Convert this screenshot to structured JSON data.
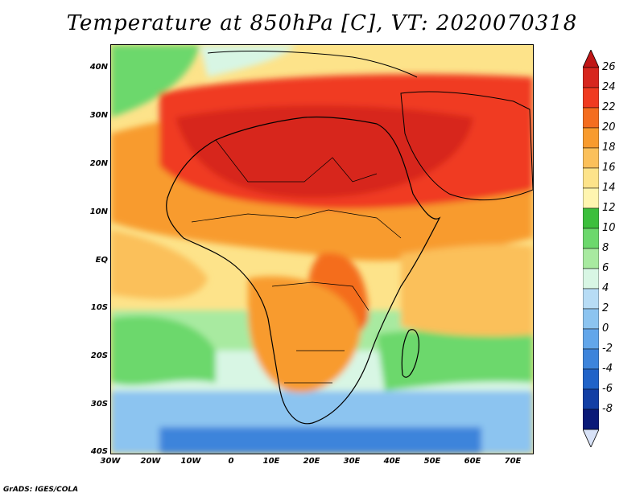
{
  "title": "Temperature at 850hPa [C], VT: 2020070318",
  "credit": "GrADS: IGES/COLA",
  "map": {
    "lat_ticks": [
      "40N",
      "30N",
      "20N",
      "10N",
      "EQ",
      "10S",
      "20S",
      "30S",
      "40S"
    ],
    "lon_ticks": [
      "30W",
      "20W",
      "10W",
      "0",
      "10E",
      "20E",
      "30E",
      "40E",
      "50E",
      "60E",
      "70E"
    ],
    "lat_range": [
      -40,
      45
    ],
    "lon_range": [
      -30,
      75
    ]
  },
  "colorbar": {
    "labels": [
      "26",
      "24",
      "22",
      "20",
      "18",
      "16",
      "14",
      "12",
      "10",
      "8",
      "6",
      "4",
      "2",
      "0",
      "-2",
      "-4",
      "-6",
      "-8"
    ],
    "colors": [
      "#d7261e",
      "#f03b20",
      "#f46d1f",
      "#f89b2e",
      "#fbc05a",
      "#fde38a",
      "#fff5b0",
      "#3cbf3c",
      "#6cd86c",
      "#a8eaa0",
      "#d8f6e4",
      "#b7dcf5",
      "#8cc4f0",
      "#62a6ea",
      "#3d84db",
      "#2063c8",
      "#123fa5",
      "#0a1a78"
    ],
    "under_color": "#d8e2f7",
    "over_color": "#c01616"
  }
}
